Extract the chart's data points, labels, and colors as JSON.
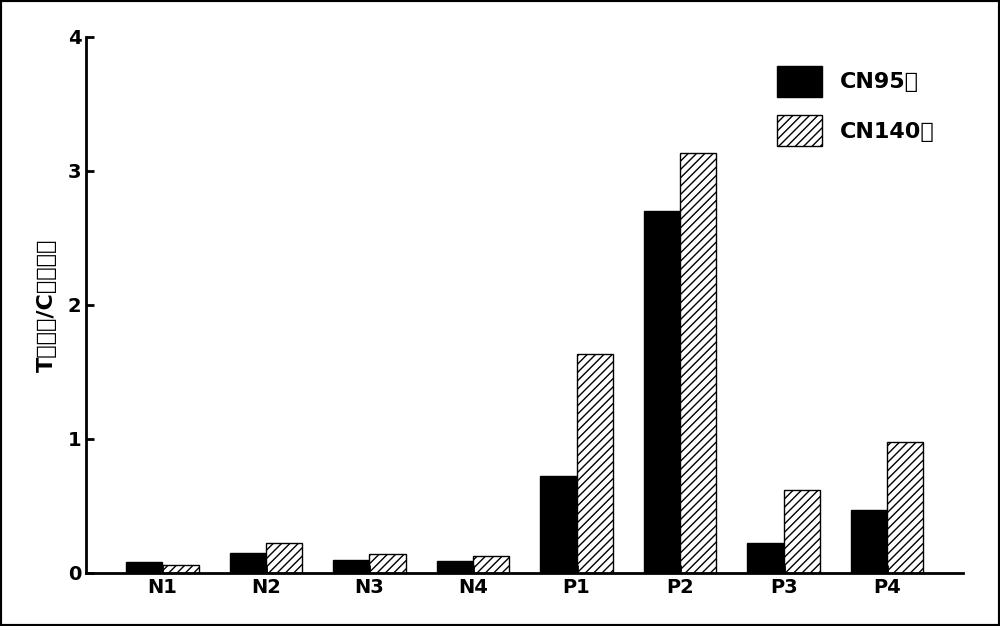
{
  "categories": [
    "N1",
    "N2",
    "N3",
    "N4",
    "P1",
    "P2",
    "P3",
    "P4"
  ],
  "cn95": [
    0.08,
    0.15,
    0.1,
    0.09,
    0.72,
    2.7,
    0.22,
    0.47
  ],
  "cn140": [
    0.06,
    0.22,
    0.14,
    0.13,
    1.63,
    3.13,
    0.62,
    0.98
  ],
  "cn95_color": "#000000",
  "cn95_label": "CN95膜",
  "cn140_label": "CN140膜",
  "ylabel": "T峰面积/C峰面积比",
  "ylim": [
    0,
    4
  ],
  "yticks": [
    0,
    1,
    2,
    3,
    4
  ],
  "background_color": "#ffffff",
  "bar_width": 0.35,
  "figsize": [
    10.0,
    6.26
  ],
  "dpi": 100,
  "hatch_pattern": "////",
  "legend_fontsize": 16,
  "ylabel_fontsize": 16,
  "tick_fontsize": 14
}
